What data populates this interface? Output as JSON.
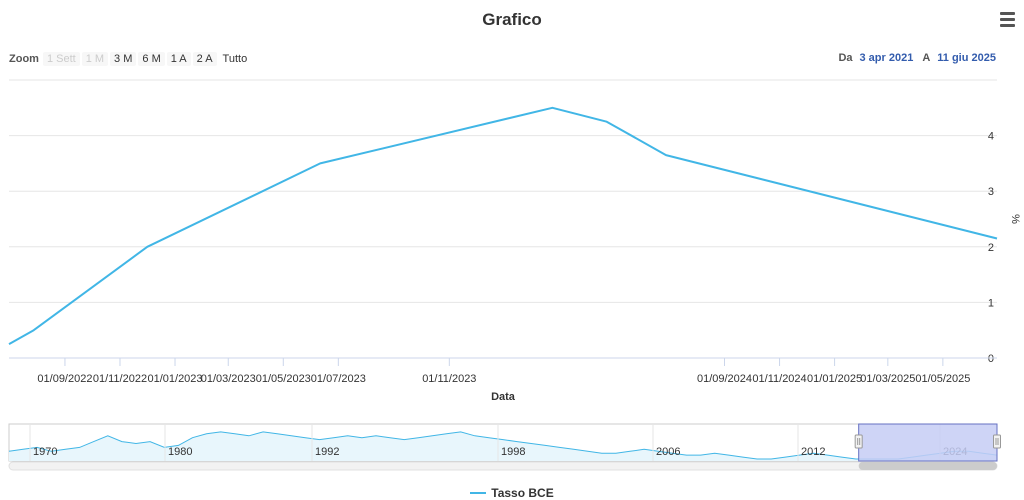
{
  "title": "Grafico",
  "zoom": {
    "label": "Zoom",
    "buttons": [
      {
        "label": "1 Sett",
        "enabled": false
      },
      {
        "label": "1 M",
        "enabled": false
      },
      {
        "label": "3 M",
        "enabled": true
      },
      {
        "label": "6 M",
        "enabled": true
      },
      {
        "label": "1 A",
        "enabled": true
      },
      {
        "label": "2 A",
        "enabled": true
      },
      {
        "label": "Tutto",
        "enabled": true
      }
    ]
  },
  "range": {
    "from_label": "Da",
    "from": "3 apr 2021",
    "to_label": "A",
    "to": "11 giu 2025"
  },
  "colors": {
    "series": "#41b6e6",
    "navigator_mask": "#c6ccf5",
    "grid": "#e6e6e6"
  },
  "chart_data": {
    "type": "line",
    "title": "Grafico",
    "xlabel": "Data",
    "ylabel": "%",
    "ylim": [
      0,
      5
    ],
    "yticks": [
      0,
      1,
      2,
      3,
      4
    ],
    "xlim": [
      "2022-07-01",
      "2025-06-30"
    ],
    "xtick_labels": [
      {
        "date": "2022-09-01",
        "label": "01/09/2022"
      },
      {
        "date": "2022-11-01",
        "label": "01/11/2022"
      },
      {
        "date": "2023-01-01",
        "label": "01/01/2023"
      },
      {
        "date": "2023-03-01",
        "label": "01/03/2023"
      },
      {
        "date": "2023-05-01",
        "label": "01/05/2023"
      },
      {
        "date": "2023-07-01",
        "label": "01/07/2023"
      },
      {
        "date": "2023-11-01",
        "label": "01/11/2023"
      },
      {
        "date": "2024-09-01",
        "label": "01/09/2024"
      },
      {
        "date": "2024-11-01",
        "label": "01/11/2024"
      },
      {
        "date": "2025-01-01",
        "label": "01/01/2025"
      },
      {
        "date": "2025-03-01",
        "label": "01/03/2025"
      },
      {
        "date": "2025-05-01",
        "label": "01/05/2025"
      }
    ],
    "series": [
      {
        "name": "Tasso BCE",
        "points": [
          {
            "x": 0.0,
            "y": 0.25
          },
          {
            "x": 0.025,
            "y": 0.5
          },
          {
            "x": 0.14,
            "y": 2.0
          },
          {
            "x": 0.315,
            "y": 3.5
          },
          {
            "x": 0.55,
            "y": 4.5
          },
          {
            "x": 0.605,
            "y": 4.25
          },
          {
            "x": 0.665,
            "y": 3.65
          },
          {
            "x": 1.0,
            "y": 2.15
          }
        ]
      }
    ],
    "navigator": {
      "year_labels": [
        "1970",
        "1980",
        "1992",
        "1998",
        "2006",
        "2012",
        "2024"
      ],
      "series": [
        4,
        5,
        6,
        4,
        5,
        6,
        9,
        12,
        9,
        8,
        9,
        6,
        7,
        11,
        13,
        14,
        13,
        12,
        14,
        13,
        12,
        11,
        10,
        11,
        12,
        11,
        12,
        11,
        10,
        11,
        12,
        13,
        14,
        12,
        11,
        10,
        9,
        8,
        7,
        6,
        5,
        4,
        3,
        3,
        4,
        5,
        4,
        3,
        2,
        2,
        3,
        2,
        1,
        0,
        0,
        1,
        2,
        3,
        2,
        1,
        0,
        0,
        0,
        0,
        1,
        2,
        3,
        4,
        4,
        3,
        2
      ],
      "selection": [
        0.86,
        1.0
      ]
    },
    "legend": "Tasso BCE"
  }
}
